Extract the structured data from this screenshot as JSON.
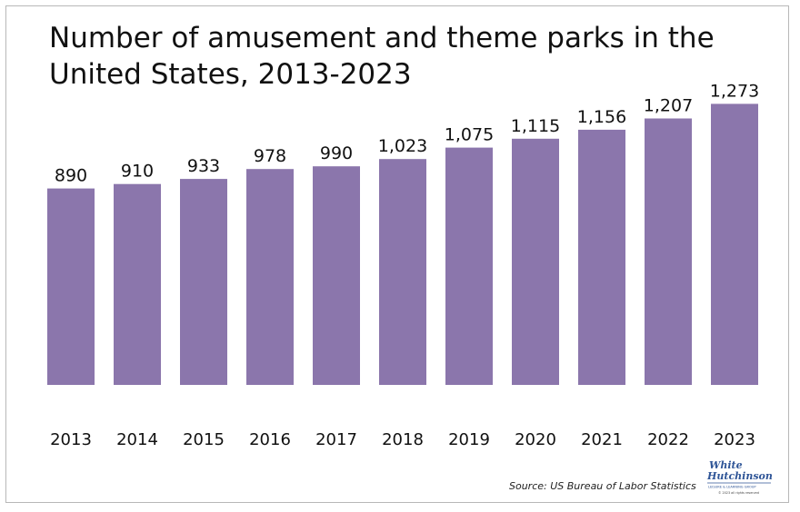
{
  "chart_data": {
    "type": "bar",
    "title_lines": [
      "Number of amusement and theme parks in the",
      "United States, 2013-2023"
    ],
    "categories": [
      "2013",
      "2014",
      "2015",
      "2016",
      "2017",
      "2018",
      "2019",
      "2020",
      "2021",
      "2022",
      "2023"
    ],
    "values": [
      890,
      910,
      933,
      978,
      990,
      1023,
      1075,
      1115,
      1156,
      1207,
      1273
    ],
    "value_labels": [
      "890",
      "910",
      "933",
      "978",
      "990",
      "1,023",
      "1,075",
      "1,115",
      "1,156",
      "1,207",
      "1,273"
    ],
    "xlabel": "",
    "ylabel": "",
    "ylim": [
      0,
      1300
    ],
    "grid": false,
    "legend": "none",
    "bar_color": "#8b76ac"
  },
  "source": "Source: US Bureau of Labor Statistics",
  "logo": {
    "line1": "White",
    "line2": "Hutchinson",
    "tagline": "LEISURE & LEARNING GROUP",
    "copyright": "© 2023 all rights reserved",
    "color": "#2f5597"
  }
}
